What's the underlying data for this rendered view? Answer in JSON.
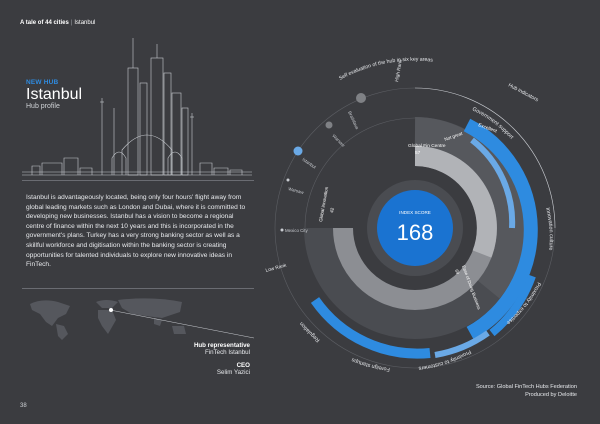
{
  "header": {
    "title": "A tale of 44 cities",
    "section": "Istanbul"
  },
  "hub": {
    "kicker": "NEW HUB",
    "city": "Istanbul",
    "subtitle": "Hub profile",
    "description": "Istanbul is advantageously located, being only four hours' flight away from global leading markets such as London and Dubai, where it is committed to developing new businesses. Istanbul has a vision to become a regional centre of finance within the next 10 years and this is incorporated in the government's plans. Turkey has a very strong banking sector as well as a skillful workforce and digitisation within the banking sector is creating opportunities for talented individuals to explore new innovative ideas in FinTech."
  },
  "representative": {
    "role": "Hub representative",
    "organisation": "FinTech Istanbul",
    "ceo_role": "CEO",
    "ceo_name": "Selim Yazici"
  },
  "page_number": "38",
  "source": {
    "line1": "Source: Global FinTech Hubs Federation",
    "line2": "Produced by Deloitte"
  },
  "chart": {
    "index_label": "INDEX SCORE",
    "index_value": "168",
    "center_color": "#1a73d1",
    "arc_color": "#2e8be0",
    "arc_light": "#6aa9e6",
    "self_eval_title": "Self evaluation of the hub in six key areas",
    "hub_indicators": "Hub indicators",
    "high_rank": "High Rank",
    "low_rank": "Low Rank",
    "ranks_label": "Global Fin Centre",
    "ranks_value": "57",
    "global_innovation": "Global innovation",
    "global_innovation_value": "42",
    "ranks_small": "Ease of Doing Business",
    "ranks_small_value": "69",
    "excellent": "Excellent",
    "not_great": "Not great",
    "areas": [
      "Government support",
      "Innovation culture",
      "Proximity to expertise",
      "Proximity to customers",
      "Foreign startups",
      "Regulation"
    ],
    "comparison_cities": [
      "Bratislava",
      "Warsaw",
      "Istanbul",
      "Warsaw",
      "Mexico City"
    ]
  }
}
